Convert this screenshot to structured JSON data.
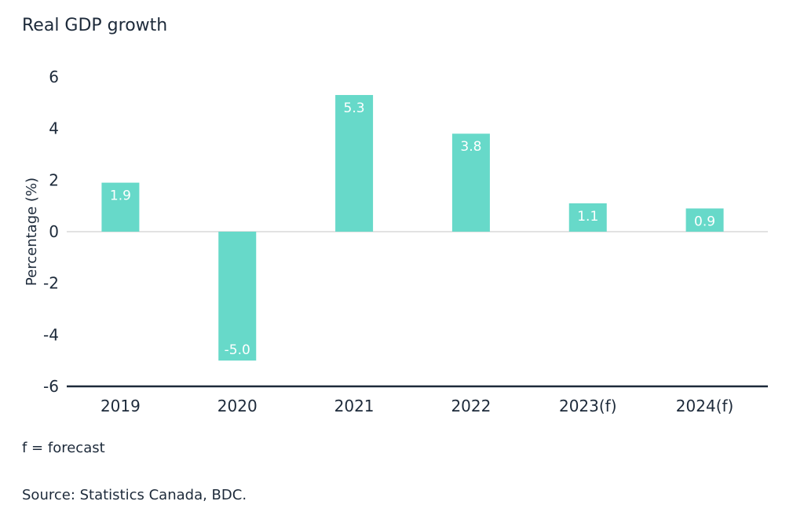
{
  "header": {
    "title": "Real GDP growth"
  },
  "notes": {
    "footnote": "f = forecast",
    "source": "Source: Statistics Canada, BDC."
  },
  "colors": {
    "bar": "#67d9c9",
    "axis": "#1d2a3a",
    "zero_line": "#d9d9d9",
    "label_text": "#ffffff"
  },
  "chart_data": {
    "type": "bar",
    "title": "Real GDP growth",
    "xlabel": "",
    "ylabel": "Percentage (%)",
    "categories": [
      "2019",
      "2020",
      "2021",
      "2022",
      "2023(f)",
      "2024(f)"
    ],
    "values": [
      1.9,
      -5.0,
      5.3,
      3.8,
      1.1,
      0.9
    ],
    "data_labels": [
      "1.9",
      "-5.0",
      "5.3",
      "3.8",
      "1.1",
      "0.9"
    ],
    "ylim": [
      -6,
      6
    ],
    "yticks": [
      6,
      4,
      2,
      0,
      -2,
      -4,
      -6
    ],
    "grid": false,
    "legend": "none"
  }
}
